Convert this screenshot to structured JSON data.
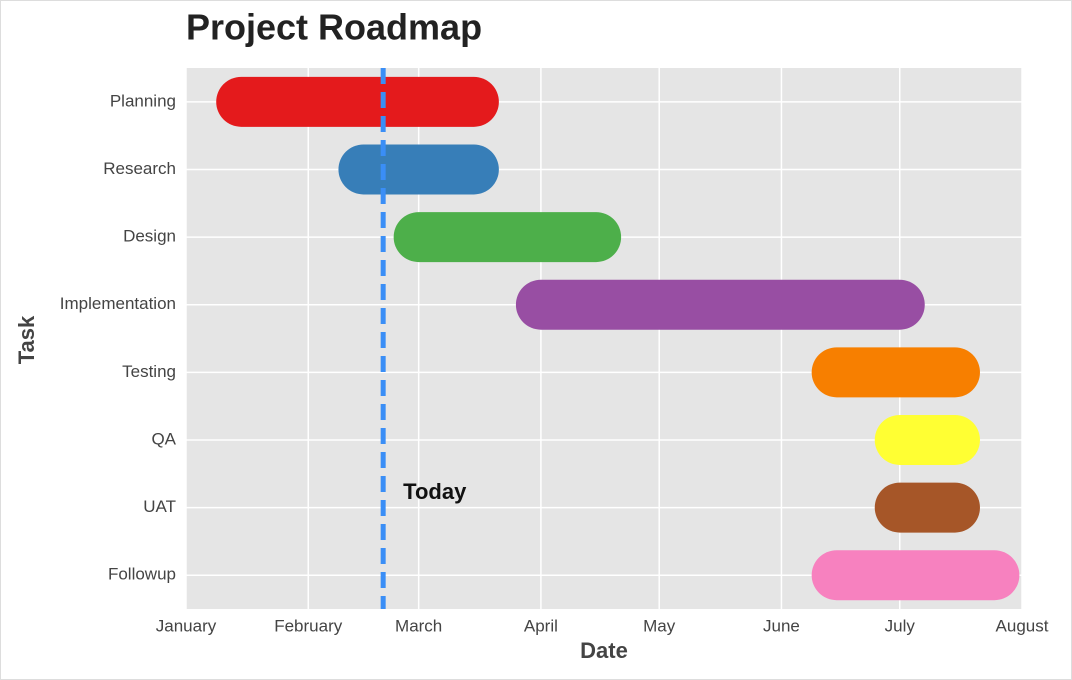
{
  "chart_data": {
    "type": "gantt",
    "title": "Project Roadmap",
    "x_label": "Date",
    "y_label": "Task",
    "categories": [
      "Planning",
      "Research",
      "Design",
      "Implementation",
      "Testing",
      "QA",
      "UAT",
      "Followup"
    ],
    "start": [
      14,
      45,
      59,
      90,
      165,
      181,
      181,
      165
    ],
    "end": [
      73,
      73,
      104,
      181,
      195,
      195,
      195,
      205
    ],
    "colors": [
      "#e41a1c",
      "#377eb8",
      "#4daf4a",
      "#984ea3",
      "#f77f00",
      "#ffff33",
      "#a65628",
      "#f781bf"
    ],
    "xlim": [
      0,
      212
    ],
    "xticks": [
      {
        "value": 0,
        "label": "January"
      },
      {
        "value": 31,
        "label": "February"
      },
      {
        "value": 59,
        "label": "March"
      },
      {
        "value": 90,
        "label": "April"
      },
      {
        "value": 120,
        "label": "May"
      },
      {
        "value": 151,
        "label": "June"
      },
      {
        "value": 181,
        "label": "July"
      },
      {
        "value": 212,
        "label": "August"
      }
    ],
    "grid": true,
    "today": {
      "x": 50,
      "label": "Today",
      "color": "#3a8ef6"
    }
  }
}
